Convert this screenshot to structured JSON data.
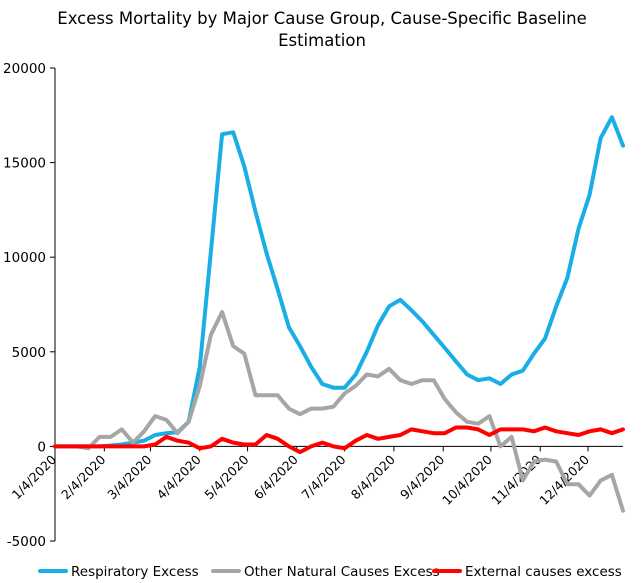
{
  "chart_data": {
    "type": "line",
    "title_line1": "Excess Mortality by Major Cause Group, Cause-Specific Baseline",
    "title_line2": "Estimation",
    "xlabel": "",
    "ylabel": "",
    "ylim": [
      -5000,
      20000
    ],
    "yticks": [
      "20000",
      "15000",
      "10000",
      "5000",
      "0",
      "-5000"
    ],
    "yticks_values": [
      20000,
      15000,
      10000,
      5000,
      0,
      -5000
    ],
    "xticks": [
      "1/4/2020",
      "2/4/2020",
      "3/4/2020",
      "4/4/2020",
      "5/4/2020",
      "6/4/2020",
      "7/4/2020",
      "8/4/2020",
      "9/4/2020",
      "10/4/2020",
      "11/4/2020",
      "12/4/2020"
    ],
    "x_start_week": 1,
    "x_tick_weeks": [
      1,
      5.43,
      9.57,
      14,
      18.29,
      22.71,
      27,
      31.43,
      35.86,
      40.14,
      44.57,
      48.86
    ],
    "grid": false,
    "legend_position": "bottom",
    "series": [
      {
        "name": "Respiratory Excess",
        "color": "#19aee6",
        "values": [
          0,
          0,
          0,
          0,
          0,
          50,
          100,
          200,
          300,
          600,
          700,
          750,
          1300,
          4200,
          10300,
          16500,
          16600,
          14800,
          12400,
          10200,
          8300,
          6300,
          5300,
          4200,
          3300,
          3100,
          3100,
          3800,
          5000,
          6400,
          7400,
          7750,
          7200,
          6600,
          5900,
          5200,
          4500,
          3800,
          3500,
          3600,
          3300,
          3800,
          4000,
          4900,
          5700,
          7400,
          8900,
          11500,
          13300,
          16300,
          17400,
          15900
        ]
      },
      {
        "name": "Other Natural Causes Excess",
        "color": "#a6a6a6",
        "values": [
          0,
          0,
          0,
          -100,
          500,
          500,
          900,
          200,
          800,
          1600,
          1400,
          700,
          1300,
          3200,
          5900,
          7100,
          5300,
          4900,
          2700,
          2700,
          2700,
          2000,
          1700,
          2000,
          2000,
          2100,
          2800,
          3200,
          3800,
          3700,
          4100,
          3500,
          3300,
          3500,
          3500,
          2500,
          1800,
          1300,
          1200,
          1600,
          0,
          500,
          -1800,
          -800,
          -700,
          -800,
          -2000,
          -2000,
          -2600,
          -1800,
          -1500,
          -3400
        ]
      },
      {
        "name": "External causes excess",
        "color": "#ff0000",
        "values": [
          0,
          0,
          0,
          0,
          0,
          0,
          0,
          0,
          0,
          100,
          500,
          300,
          200,
          -100,
          0,
          400,
          200,
          100,
          100,
          600,
          400,
          0,
          -300,
          0,
          200,
          0,
          -100,
          300,
          600,
          400,
          500,
          600,
          900,
          800,
          700,
          700,
          1000,
          1000,
          900,
          600,
          900,
          900,
          900,
          800,
          1000,
          800,
          700,
          600,
          800,
          900,
          700,
          900
        ]
      }
    ]
  }
}
